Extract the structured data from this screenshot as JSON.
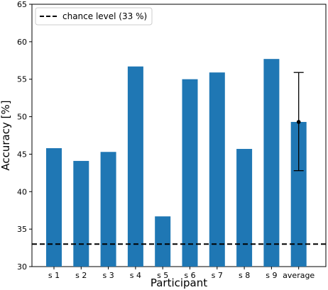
{
  "chart_data": {
    "type": "bar",
    "categories": [
      "s 1",
      "s 2",
      "s 3",
      "s 4",
      "s 5",
      "s 6",
      "s 7",
      "s 8",
      "s 9",
      "average"
    ],
    "values": [
      45.8,
      44.1,
      45.3,
      56.7,
      36.7,
      55.0,
      55.9,
      45.7,
      57.7,
      49.3
    ],
    "error_bar": {
      "category": "average",
      "mean": 49.3,
      "lower": 42.8,
      "upper": 55.9
    },
    "reference_line": {
      "y": 33,
      "label": "chance level (33 %)",
      "style": "dashed",
      "color": "#000000"
    },
    "xlabel": "Participant",
    "ylabel": "Accuracy [%]",
    "ylim": [
      30,
      65
    ],
    "yticks": [
      30,
      35,
      40,
      45,
      50,
      55,
      60,
      65
    ],
    "legend": {
      "position": "top-left",
      "entries": [
        "chance level (33 %)"
      ]
    },
    "bar_color": "#1f77b4",
    "grid": false
  }
}
